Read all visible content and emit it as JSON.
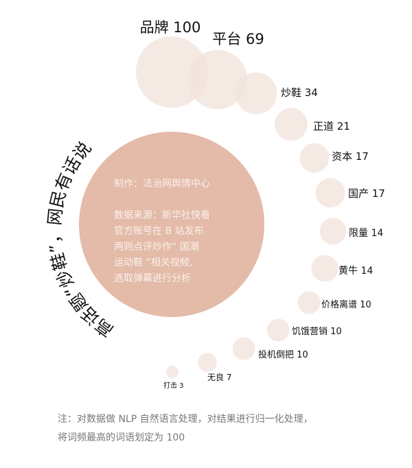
{
  "title": "高话题“炒鞋”，网民有话说",
  "center": {
    "producer": "制作：法治网舆情中心",
    "source_lines": [
      "数据来源：新华社快看",
      "官方账号在 B 站发布",
      "两则点评炒作“ 国潮",
      "运动鞋 ”相关视频,",
      "选取弹幕进行分析"
    ]
  },
  "note": {
    "line1": "注：对数据做 NLP 自然语言处理，对结果进行归一化处理，",
    "line2": "将词频最高的词语划定为 100"
  },
  "colors": {
    "bubble": "#f2e1da",
    "center": "#e3bba8",
    "text": "#111111",
    "note": "#777777"
  },
  "chart_data": {
    "type": "bubble",
    "categories": [
      "品牌",
      "平台",
      "炒鞋",
      "正道",
      "资本",
      "国产",
      "限量",
      "黄牛",
      "价格离谱",
      "饥饿营销",
      "投机倒把",
      "无良",
      "打击"
    ],
    "values": [
      100,
      69,
      34,
      21,
      17,
      17,
      14,
      14,
      10,
      10,
      10,
      7,
      3
    ],
    "labels": [
      "品牌 100",
      "平台 69",
      "炒鞋 34",
      "正道 21",
      "资本 17",
      "国产 17",
      "限量 14",
      "黄牛 14",
      "价格离谱 10",
      "饥饿营销 10",
      "投机倒把 10",
      "无良 7",
      "打击 3"
    ]
  }
}
